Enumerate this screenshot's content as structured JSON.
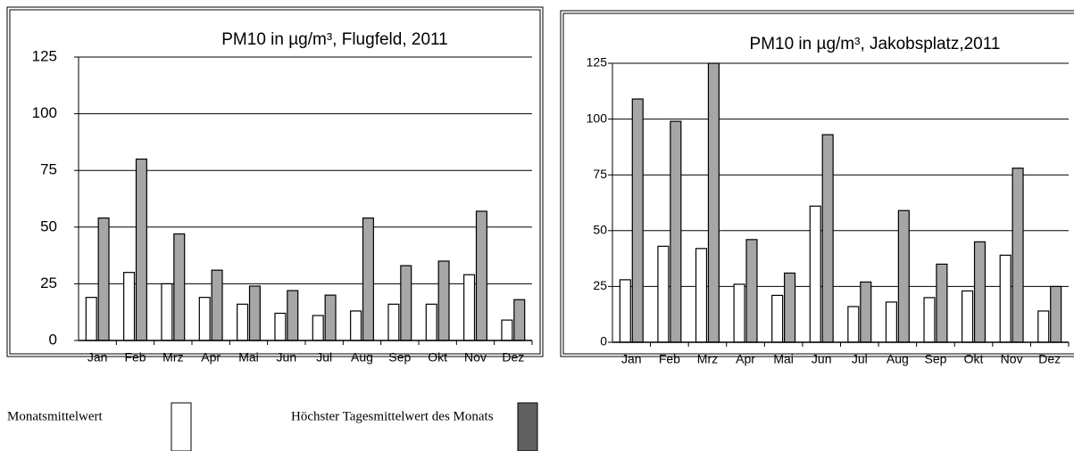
{
  "chart_data": [
    {
      "type": "bar",
      "title": "PM10 in µg/m³, Flugfeld, 2011",
      "categories": [
        "Jan",
        "Feb",
        "Mrz",
        "Apr",
        "Mai",
        "Jun",
        "Jul",
        "Aug",
        "Sep",
        "Okt",
        "Nov",
        "Dez"
      ],
      "series": [
        {
          "name": "Monatsmittelwert",
          "color": "#ffffff",
          "values": [
            19,
            30,
            25,
            19,
            16,
            12,
            11,
            13,
            16,
            16,
            29,
            9
          ]
        },
        {
          "name": "Höchster Tagesmittelwert des Monats",
          "color": "#a6a6a6",
          "values": [
            54,
            80,
            47,
            31,
            24,
            22,
            20,
            54,
            33,
            35,
            57,
            18
          ]
        }
      ],
      "ylim": [
        0,
        125
      ],
      "yticks": [
        0,
        25,
        50,
        75,
        100,
        125
      ],
      "grid": true
    },
    {
      "type": "bar",
      "title": "PM10 in µg/m³, Jakobsplatz,2011",
      "categories": [
        "Jan",
        "Feb",
        "Mrz",
        "Apr",
        "Mai",
        "Jun",
        "Jul",
        "Aug",
        "Sep",
        "Okt",
        "Nov",
        "Dez"
      ],
      "series": [
        {
          "color": "#ffffff",
          "values": [
            28,
            43,
            42,
            26,
            21,
            61,
            16,
            18,
            20,
            23,
            39,
            14
          ]
        },
        {
          "color": "#a6a6a6",
          "values": [
            109,
            99,
            125,
            46,
            31,
            93,
            27,
            59,
            35,
            45,
            78,
            25
          ]
        }
      ],
      "ylim": [
        0,
        125
      ],
      "yticks": [
        0,
        25,
        50,
        75,
        100,
        125
      ],
      "grid": true
    }
  ]
}
